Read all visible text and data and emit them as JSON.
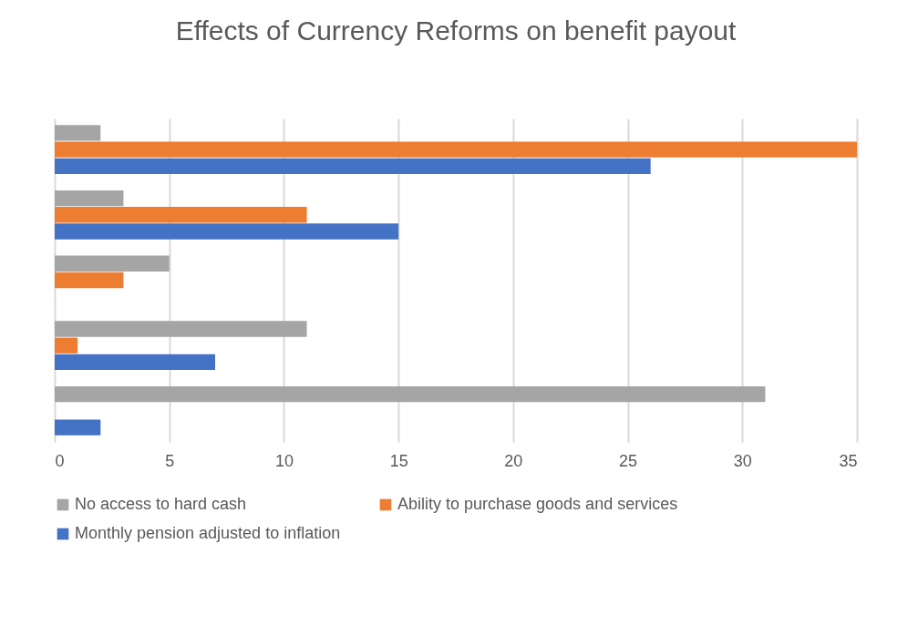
{
  "chart_data": {
    "type": "bar",
    "orientation": "horizontal",
    "title": "Effects of Currency Reforms on benefit payout",
    "categories": [
      null,
      null,
      null,
      null,
      null
    ],
    "series": [
      {
        "name": "No access to hard cash",
        "color": "#a5a5a5",
        "values": [
          2,
          3,
          5,
          11,
          31
        ]
      },
      {
        "name": "Ability to purchase goods and services",
        "color": "#ed7d31",
        "values": [
          35,
          11,
          3,
          1,
          0
        ]
      },
      {
        "name": "Monthly pension adjusted to inflation",
        "color": "#4472c4",
        "values": [
          26,
          15,
          0,
          7,
          2
        ]
      }
    ],
    "xlim": [
      0,
      35
    ],
    "xticks": [
      0,
      5,
      10,
      15,
      20,
      25,
      30,
      35
    ],
    "grid": "x",
    "legend": "bottom",
    "tick_labels": "x"
  }
}
